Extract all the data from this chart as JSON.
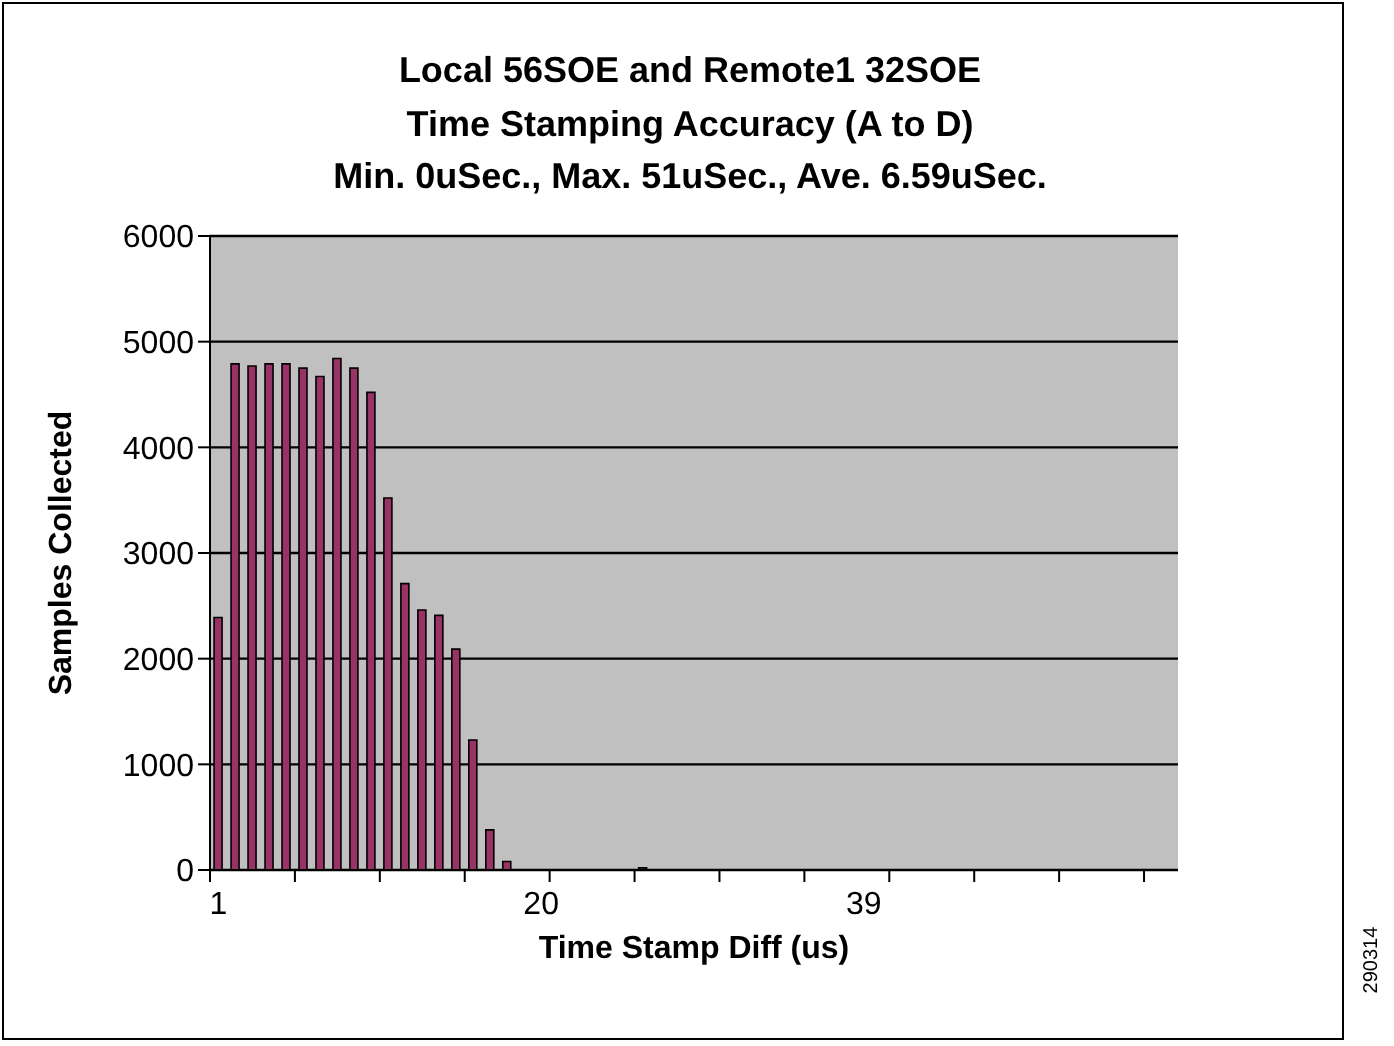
{
  "chart_data": {
    "type": "bar",
    "title": "Local 56SOE and Remote1 32SOE\nTime Stamping Accuracy (A to D)\nMin. 0uSec.,  Max. 51uSec., Ave. 6.59uSec.",
    "xlabel": "Time Stamp Diff (us)",
    "ylabel": "Samples Collected",
    "categories": [
      "1",
      null,
      null,
      null,
      null,
      null,
      null,
      null,
      null,
      null,
      null,
      null,
      null,
      null,
      null,
      null,
      null,
      null,
      null,
      "20",
      null,
      null,
      null,
      null,
      null,
      null,
      null,
      null,
      null,
      null,
      null,
      null,
      null,
      null,
      null,
      null,
      null,
      null,
      "39",
      null,
      null,
      null,
      null,
      null,
      null,
      null,
      null,
      null,
      null,
      null,
      null,
      null,
      null,
      null,
      null,
      null,
      null
    ],
    "values": [
      2390,
      4790,
      4770,
      4790,
      4790,
      4750,
      4670,
      4840,
      4750,
      4520,
      3520,
      2710,
      2460,
      2410,
      2090,
      1230,
      380,
      80,
      0,
      0,
      0,
      0,
      0,
      0,
      0,
      20,
      0,
      0,
      0,
      0,
      0,
      0,
      0,
      0,
      0,
      0,
      0,
      0,
      0,
      0,
      0,
      0,
      0,
      0,
      0,
      0,
      0,
      0,
      0,
      0,
      0,
      0,
      0,
      0,
      0,
      0,
      0
    ],
    "color": "#993366",
    "ylim": [
      0,
      6000
    ],
    "yticks": [
      0,
      1000,
      2000,
      3000,
      4000,
      5000,
      6000
    ],
    "grid": "y",
    "annotations": [
      "290314"
    ]
  }
}
